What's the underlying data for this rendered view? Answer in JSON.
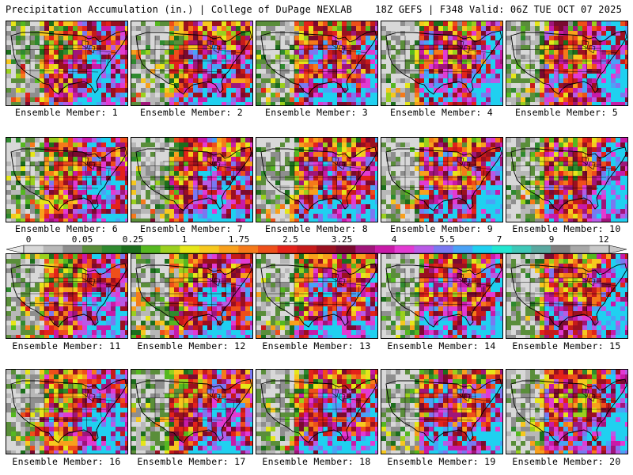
{
  "header": {
    "left": "Precipitation Accumulation (in.) | College of DuPage NEXLAB",
    "right": "18Z GEFS | F348 Valid: 06Z TUE OCT 07 2025"
  },
  "panels": [
    {
      "label": "Ensemble Member: 1"
    },
    {
      "label": "Ensemble Member: 2"
    },
    {
      "label": "Ensemble Member: 3"
    },
    {
      "label": "Ensemble Member: 4"
    },
    {
      "label": "Ensemble Member: 5"
    },
    {
      "label": "Ensemble Member: 6"
    },
    {
      "label": "Ensemble Member: 7"
    },
    {
      "label": "Ensemble Member: 8"
    },
    {
      "label": "Ensemble Member: 9"
    },
    {
      "label": "Ensemble Member: 10"
    },
    {
      "label": "Ensemble Member: 11"
    },
    {
      "label": "Ensemble Member: 12"
    },
    {
      "label": "Ensemble Member: 13"
    },
    {
      "label": "Ensemble Member: 14"
    },
    {
      "label": "Ensemble Member: 15"
    },
    {
      "label": "Ensemble Member: 16"
    },
    {
      "label": "Ensemble Member: 17"
    },
    {
      "label": "Ensemble Member: 18"
    },
    {
      "label": "Ensemble Member: 19"
    },
    {
      "label": "Ensemble Member: 20"
    }
  ],
  "colorbar": {
    "ticks": [
      "0",
      "0.05",
      "0.25",
      "1",
      "1.75",
      "2.5",
      "3.25",
      "4",
      "5.5",
      "7",
      "9",
      "12"
    ],
    "colors": [
      "#d8d8d8",
      "#b8b8b8",
      "#8e8e8e",
      "#5a8e3a",
      "#2f8a2f",
      "#1c6e1c",
      "#55b820",
      "#9ad01e",
      "#e6e619",
      "#f6c81e",
      "#f8a01c",
      "#f57a1a",
      "#ee4f1a",
      "#e3221a",
      "#c61a1a",
      "#9a1020",
      "#7a0a30",
      "#a0157a",
      "#c81aa8",
      "#e23ad2",
      "#b85ae6",
      "#7a78f0",
      "#4aa2f6",
      "#20d0f0",
      "#22e6d0",
      "#3ec8b8",
      "#5aa8a0",
      "#808080",
      "#a8a8a8",
      "#c8c8c8"
    ]
  },
  "legend_semantics": {
    "ocean_color": "#4b4b4b",
    "border_color": "#000000"
  }
}
